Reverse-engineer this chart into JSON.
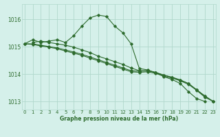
{
  "xlabel": "Graphe pression niveau de la mer (hPa)",
  "bg_color": "#d5f0ea",
  "grid_color": "#b0d8cc",
  "line_color": "#2d6b2d",
  "ylim": [
    1012.7,
    1016.55
  ],
  "xlim": [
    -0.3,
    23.3
  ],
  "yticks": [
    1013,
    1014,
    1015,
    1016
  ],
  "xticks": [
    0,
    1,
    2,
    3,
    4,
    5,
    6,
    7,
    8,
    9,
    10,
    11,
    12,
    13,
    14,
    15,
    16,
    17,
    18,
    19,
    20,
    21,
    22,
    23
  ],
  "series": [
    {
      "x": [
        0,
        1,
        2,
        3,
        4,
        5,
        6,
        7,
        8,
        9,
        10,
        11,
        12,
        13,
        14,
        15,
        16,
        17,
        18,
        19,
        20,
        21,
        22
      ],
      "y": [
        1015.1,
        1015.25,
        1015.15,
        1015.2,
        1015.25,
        1015.15,
        1015.4,
        1015.75,
        1016.05,
        1016.15,
        1016.1,
        1015.75,
        1015.5,
        1015.1,
        1014.2,
        1014.15,
        1014.05,
        1013.9,
        1013.8,
        1013.65,
        1013.35,
        1013.1,
        1013.0
      ]
    },
    {
      "x": [
        0,
        1,
        2,
        3,
        4,
        5,
        6,
        7,
        8,
        9,
        10,
        11,
        12,
        13,
        14,
        15,
        16,
        17,
        18,
        19,
        20,
        21,
        22,
        23
      ],
      "y": [
        1015.1,
        1015.1,
        1015.05,
        1015.0,
        1014.95,
        1014.88,
        1014.8,
        1014.72,
        1014.62,
        1014.52,
        1014.42,
        1014.32,
        1014.22,
        1014.12,
        1014.1,
        1014.12,
        1014.05,
        1013.95,
        1013.88,
        1013.78,
        1013.65,
        1013.42,
        1013.18,
        1013.0
      ]
    },
    {
      "x": [
        0,
        1,
        2,
        3,
        4,
        5,
        6,
        7,
        8,
        9,
        10,
        11,
        12,
        13,
        14,
        15,
        16,
        17,
        18,
        19,
        20,
        21,
        22,
        23
      ],
      "y": [
        1015.1,
        1015.08,
        1015.02,
        1014.98,
        1014.92,
        1014.84,
        1014.76,
        1014.68,
        1014.58,
        1014.48,
        1014.38,
        1014.28,
        1014.18,
        1014.08,
        1014.06,
        1014.08,
        1014.02,
        1013.92,
        1013.85,
        1013.75,
        1013.62,
        1013.4,
        1013.15,
        1013.0
      ]
    },
    {
      "x": [
        1,
        2,
        3,
        4,
        5,
        6,
        7,
        8,
        9,
        10,
        11,
        12,
        13,
        14,
        15,
        16,
        17,
        18,
        19,
        20,
        21,
        22,
        23
      ],
      "y": [
        1015.15,
        1015.2,
        1015.15,
        1015.1,
        1015.05,
        1014.98,
        1014.88,
        1014.78,
        1014.65,
        1014.55,
        1014.45,
        1014.35,
        1014.22,
        1014.12,
        1014.12,
        1014.06,
        1013.96,
        1013.88,
        1013.78,
        1013.65,
        1013.42,
        1013.2,
        1013.0
      ]
    }
  ]
}
